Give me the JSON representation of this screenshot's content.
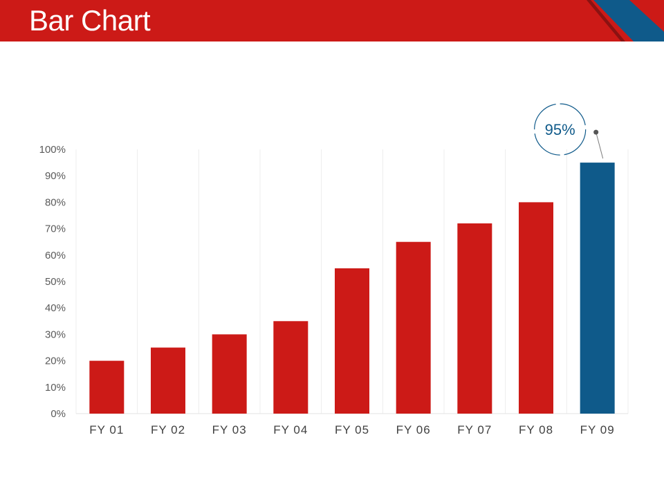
{
  "header": {
    "title": "Bar Chart",
    "accent": "#cc1a17",
    "secondary": "#0f5a8a"
  },
  "chart_data": {
    "type": "bar",
    "categories": [
      "FY 01",
      "FY 02",
      "FY 03",
      "FY 04",
      "FY 05",
      "FY 06",
      "FY 07",
      "FY 08",
      "FY 09"
    ],
    "values": [
      20,
      25,
      30,
      35,
      55,
      65,
      72,
      80,
      95
    ],
    "ylim": [
      0,
      100
    ],
    "y_ticks": [
      "0%",
      "10%",
      "20%",
      "30%",
      "40%",
      "50%",
      "60%",
      "70%",
      "80%",
      "90%",
      "100%"
    ],
    "bar_colors": [
      "#cc1a17",
      "#cc1a17",
      "#cc1a17",
      "#cc1a17",
      "#cc1a17",
      "#cc1a17",
      "#cc1a17",
      "#cc1a17",
      "#0f5a8a"
    ],
    "grid": "vertical",
    "annotation": {
      "category": "FY 09",
      "label": "95%"
    }
  }
}
